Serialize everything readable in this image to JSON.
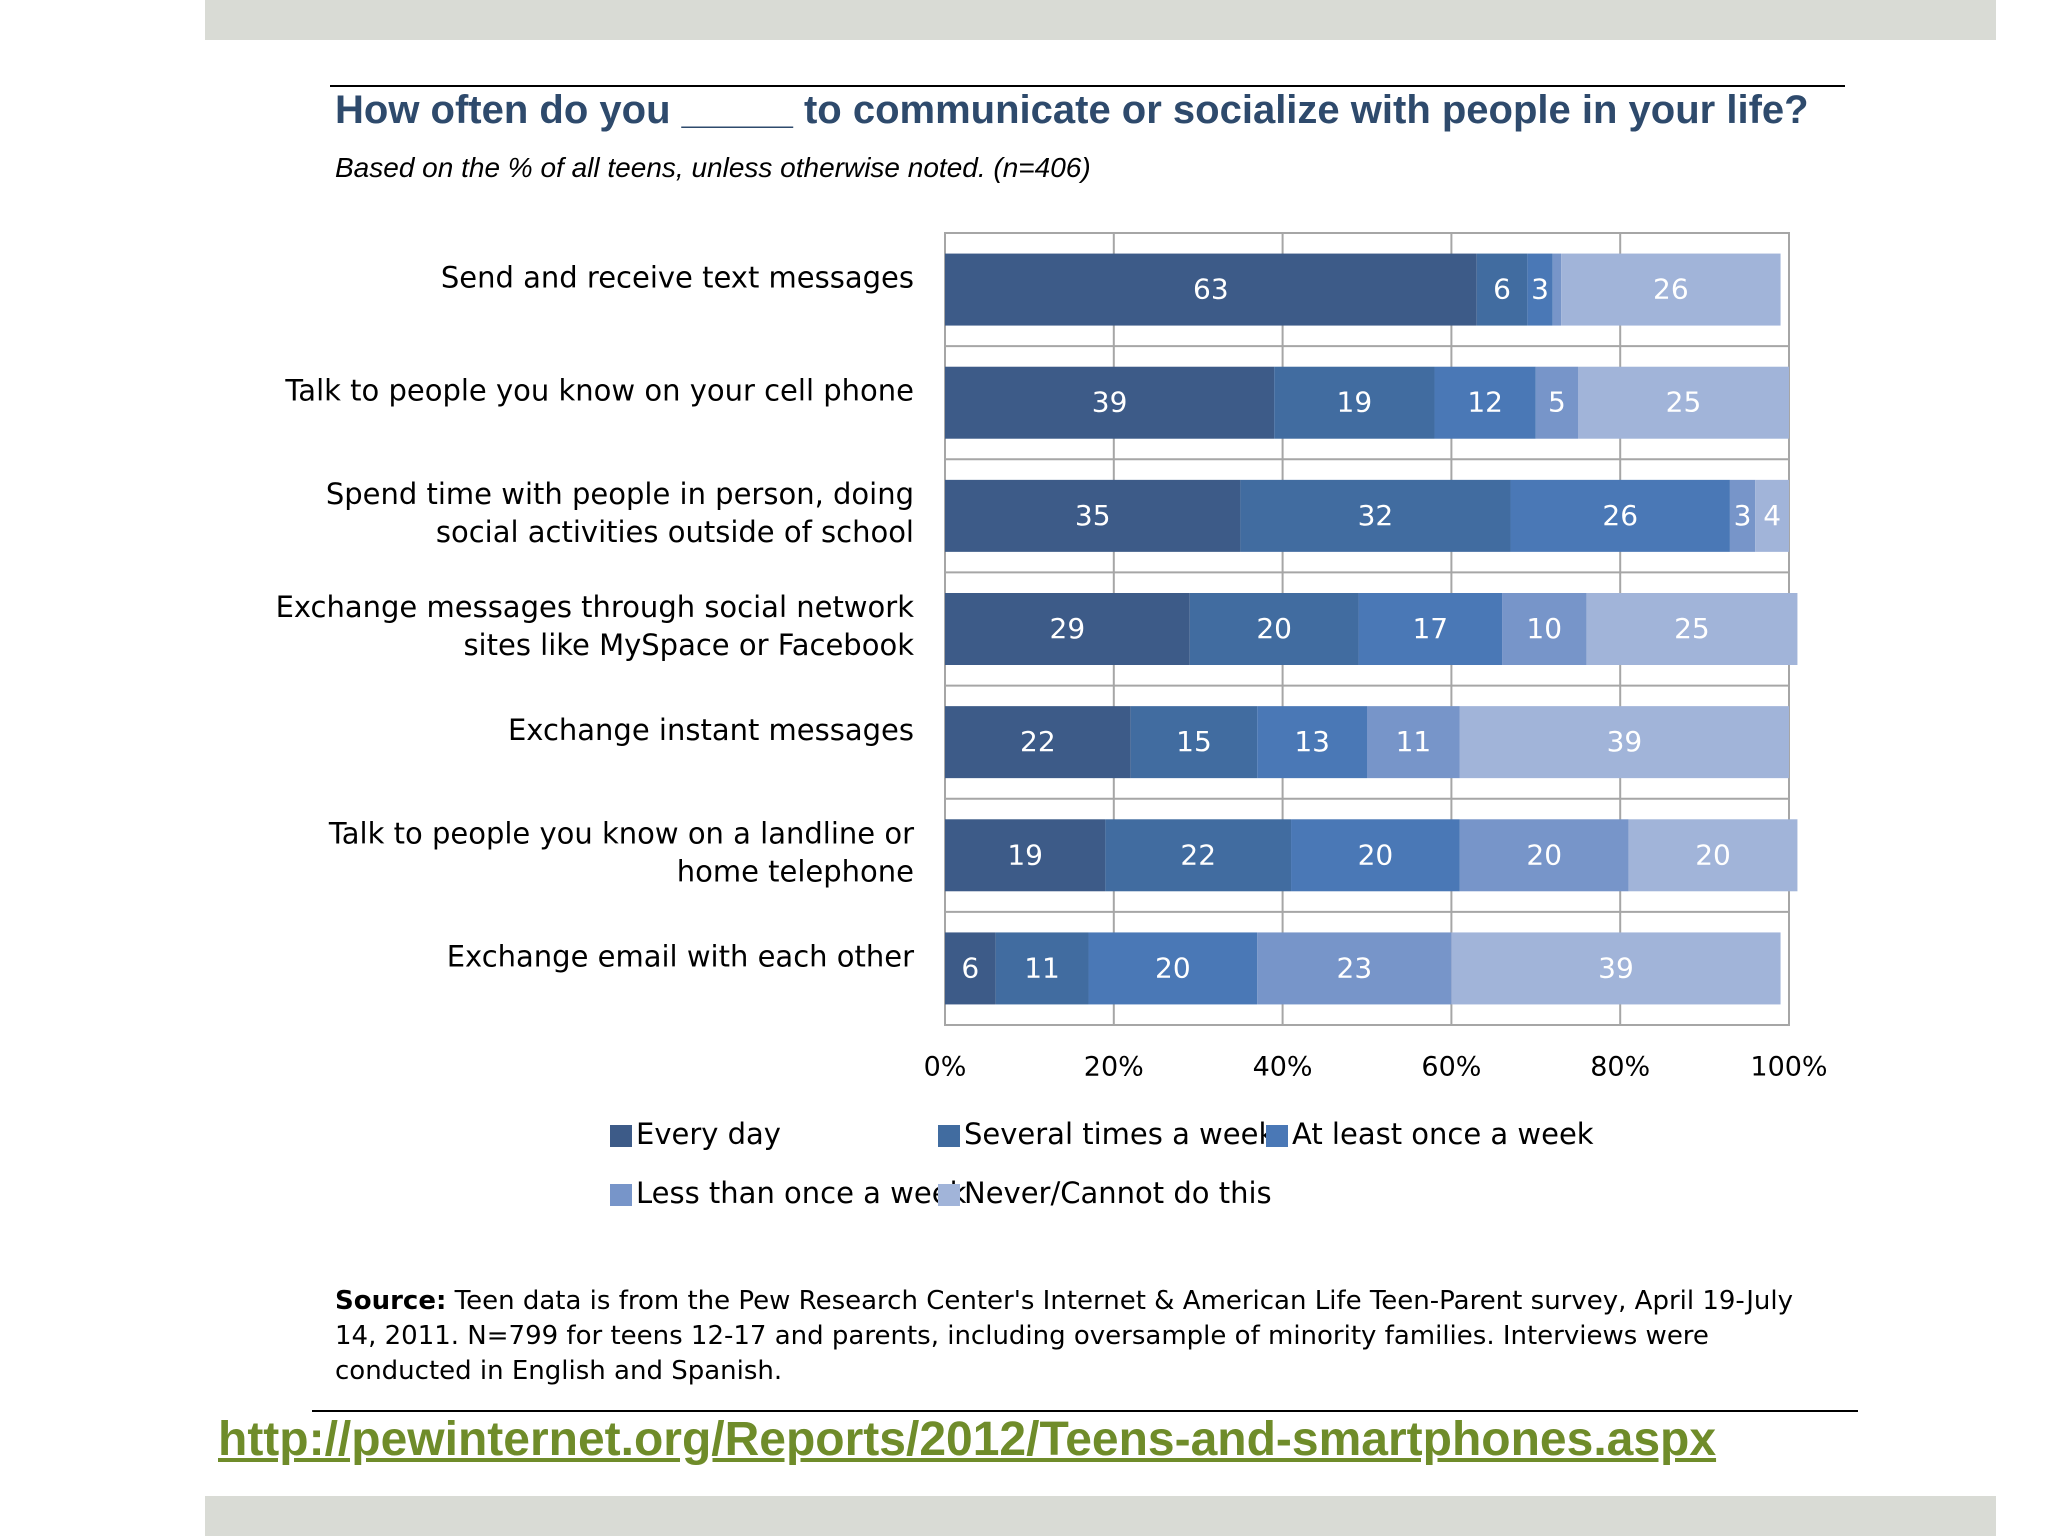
{
  "page": {
    "source_label": "Source:",
    "source_text": "Teen data is from the Pew Research Center's Internet & American Life Teen-Parent survey, April 19-July 14, 2011. N=799 for teens 12-17 and parents, including oversample of minority families. Interviews were conducted in English and Spanish.",
    "url": "http://pewinternet.org/Reports/2012/Teens-and-smartphones.aspx"
  },
  "chart_data": {
    "type": "bar",
    "orientation": "horizontal",
    "stacked": "percent",
    "title": "How often do you _____ to communicate or socialize with people in your life?",
    "subtitle": "Based on the % of all teens, unless otherwise noted.  (n=406)",
    "categories": [
      [
        "Send and receive text messages"
      ],
      [
        "Talk to people you know on your cell phone"
      ],
      [
        "Spend time with people in person, doing",
        "social activities outside of school"
      ],
      [
        "Exchange messages through social network",
        "sites like MySpace or Facebook"
      ],
      [
        "Exchange instant messages"
      ],
      [
        "Talk to people you know on a landline or",
        "home telephone"
      ],
      [
        "Exchange email with each other"
      ]
    ],
    "series": [
      {
        "name": "Every day",
        "color": "#3d5b88",
        "values": [
          63,
          39,
          35,
          29,
          22,
          19,
          6
        ]
      },
      {
        "name": "Several times a week",
        "color": "#416ca0",
        "values": [
          6,
          19,
          32,
          20,
          15,
          22,
          11
        ]
      },
      {
        "name": "At least once a week",
        "color": "#4a78b6",
        "values": [
          3,
          12,
          26,
          17,
          13,
          20,
          20
        ]
      },
      {
        "name": "Less than once a week",
        "color": "#7795c9",
        "values": [
          1,
          5,
          3,
          10,
          11,
          20,
          23
        ]
      },
      {
        "name": "Never/Cannot do this",
        "color": "#a1b4d9",
        "values": [
          26,
          25,
          4,
          25,
          39,
          20,
          39
        ]
      }
    ],
    "data_labels": [
      [
        "63",
        "6",
        "3",
        "",
        "26"
      ],
      [
        "39",
        "19",
        "12",
        "5",
        "25"
      ],
      [
        "35",
        "32",
        "26",
        "3",
        "4"
      ],
      [
        "29",
        "20",
        "17",
        "10",
        "25"
      ],
      [
        "22",
        "15",
        "13",
        "11",
        "39"
      ],
      [
        "19",
        "22",
        "20",
        "20",
        "20"
      ],
      [
        "6",
        "11",
        "20",
        "23",
        "39"
      ]
    ],
    "xlim": [
      0,
      100
    ],
    "xticks": [
      "0%",
      "20%",
      "40%",
      "60%",
      "80%",
      "100%"
    ],
    "grid": true,
    "legend_position": "bottom"
  }
}
